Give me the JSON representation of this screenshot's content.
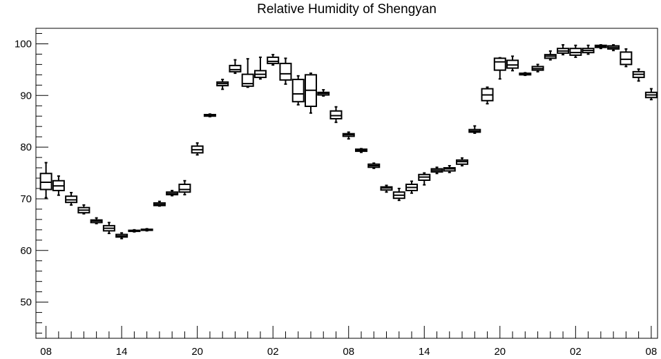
{
  "chart_data": {
    "type": "box",
    "title": "Relative Humidity of Shengyan",
    "xlabel": "",
    "ylabel": "",
    "ylim": [
      43,
      103
    ],
    "xlim": [
      -0.8,
      48.5
    ],
    "y_ticks": [
      50,
      60,
      70,
      80,
      90,
      100
    ],
    "x_tick_labels": [
      "08",
      "14",
      "20",
      "02",
      "08",
      "14",
      "20",
      "02",
      "08"
    ],
    "x_tick_positions": [
      0,
      6,
      12,
      18,
      24,
      30,
      36,
      42,
      48
    ],
    "grid": false,
    "box_count": 49,
    "boxes": [
      {
        "x": 0,
        "min": 70.2,
        "q1": 71.8,
        "median": 73.2,
        "q3": 74.9,
        "max": 77.0
      },
      {
        "x": 1,
        "min": 70.7,
        "q1": 71.6,
        "median": 72.5,
        "q3": 73.5,
        "max": 74.4
      },
      {
        "x": 2,
        "min": 68.8,
        "q1": 69.3,
        "median": 69.8,
        "q3": 70.5,
        "max": 71.2
      },
      {
        "x": 3,
        "min": 67.1,
        "q1": 67.3,
        "median": 67.8,
        "q3": 68.3,
        "max": 68.8
      },
      {
        "x": 4,
        "min": 65.2,
        "q1": 65.4,
        "median": 65.7,
        "q3": 65.9,
        "max": 66.3
      },
      {
        "x": 5,
        "min": 63.3,
        "q1": 63.8,
        "median": 64.3,
        "q3": 64.8,
        "max": 65.4
      },
      {
        "x": 6,
        "min": 62.3,
        "q1": 62.6,
        "median": 62.8,
        "q3": 63.1,
        "max": 63.4
      },
      {
        "x": 7,
        "min": 63.6,
        "q1": 63.7,
        "median": 63.8,
        "q3": 63.9,
        "max": 64.0
      },
      {
        "x": 8,
        "min": 63.8,
        "q1": 63.9,
        "median": 64.0,
        "q3": 64.1,
        "max": 64.2
      },
      {
        "x": 9,
        "min": 68.6,
        "q1": 68.7,
        "median": 68.9,
        "q3": 69.2,
        "max": 69.5
      },
      {
        "x": 10,
        "min": 70.6,
        "q1": 70.8,
        "median": 71.0,
        "q3": 71.3,
        "max": 71.6
      },
      {
        "x": 11,
        "min": 70.8,
        "q1": 71.3,
        "median": 71.8,
        "q3": 72.8,
        "max": 73.5
      },
      {
        "x": 12,
        "min": 78.5,
        "q1": 78.9,
        "median": 79.5,
        "q3": 80.2,
        "max": 80.8
      },
      {
        "x": 13,
        "min": 85.9,
        "q1": 86.0,
        "median": 86.1,
        "q3": 86.3,
        "max": 86.4
      },
      {
        "x": 14,
        "min": 91.2,
        "q1": 91.9,
        "median": 92.3,
        "q3": 92.6,
        "max": 93.1
      },
      {
        "x": 15,
        "min": 94.3,
        "q1": 94.6,
        "median": 95.0,
        "q3": 95.8,
        "max": 96.9
      },
      {
        "x": 16,
        "min": 91.6,
        "q1": 91.8,
        "median": 92.3,
        "q3": 94.1,
        "max": 97.1
      },
      {
        "x": 17,
        "min": 93.2,
        "q1": 93.5,
        "median": 94.1,
        "q3": 94.8,
        "max": 97.4
      },
      {
        "x": 18,
        "min": 95.9,
        "q1": 96.2,
        "median": 96.6,
        "q3": 97.4,
        "max": 97.9
      },
      {
        "x": 19,
        "min": 92.2,
        "q1": 93.0,
        "median": 94.2,
        "q3": 96.2,
        "max": 97.2
      },
      {
        "x": 20,
        "min": 88.2,
        "q1": 88.8,
        "median": 90.3,
        "q3": 93.1,
        "max": 93.8
      },
      {
        "x": 21,
        "min": 86.6,
        "q1": 87.9,
        "median": 91.0,
        "q3": 94.0,
        "max": 94.3
      },
      {
        "x": 22,
        "min": 89.9,
        "q1": 90.1,
        "median": 90.4,
        "q3": 90.6,
        "max": 91.1
      },
      {
        "x": 23,
        "min": 84.8,
        "q1": 85.5,
        "median": 86.1,
        "q3": 87.0,
        "max": 87.8
      },
      {
        "x": 24,
        "min": 81.6,
        "q1": 82.1,
        "median": 82.4,
        "q3": 82.6,
        "max": 82.9
      },
      {
        "x": 25,
        "min": 79.0,
        "q1": 79.2,
        "median": 79.4,
        "q3": 79.6,
        "max": 79.7
      },
      {
        "x": 26,
        "min": 75.9,
        "q1": 76.1,
        "median": 76.4,
        "q3": 76.7,
        "max": 76.9
      },
      {
        "x": 27,
        "min": 71.3,
        "q1": 71.7,
        "median": 72.1,
        "q3": 72.3,
        "max": 72.6
      },
      {
        "x": 28,
        "min": 69.7,
        "q1": 70.1,
        "median": 70.7,
        "q3": 71.3,
        "max": 72.0
      },
      {
        "x": 29,
        "min": 71.1,
        "q1": 71.6,
        "median": 72.2,
        "q3": 72.8,
        "max": 73.4
      },
      {
        "x": 30,
        "min": 72.7,
        "q1": 73.6,
        "median": 74.2,
        "q3": 74.7,
        "max": 75.0
      },
      {
        "x": 31,
        "min": 74.9,
        "q1": 75.2,
        "median": 75.5,
        "q3": 75.8,
        "max": 76.1
      },
      {
        "x": 32,
        "min": 75.1,
        "q1": 75.4,
        "median": 75.8,
        "q3": 76.0,
        "max": 76.4
      },
      {
        "x": 33,
        "min": 76.4,
        "q1": 76.7,
        "median": 77.2,
        "q3": 77.5,
        "max": 77.9
      },
      {
        "x": 34,
        "min": 82.7,
        "q1": 82.9,
        "median": 83.1,
        "q3": 83.4,
        "max": 84.1
      },
      {
        "x": 35,
        "min": 88.4,
        "q1": 89.0,
        "median": 90.1,
        "q3": 91.3,
        "max": 91.6
      },
      {
        "x": 36,
        "min": 93.2,
        "q1": 94.9,
        "median": 96.5,
        "q3": 97.2,
        "max": 97.3
      },
      {
        "x": 37,
        "min": 94.8,
        "q1": 95.3,
        "median": 95.9,
        "q3": 96.8,
        "max": 97.6
      },
      {
        "x": 38,
        "min": 93.9,
        "q1": 94.0,
        "median": 94.2,
        "q3": 94.3,
        "max": 94.4
      },
      {
        "x": 39,
        "min": 94.6,
        "q1": 94.9,
        "median": 95.2,
        "q3": 95.6,
        "max": 96.0
      },
      {
        "x": 40,
        "min": 96.9,
        "q1": 97.2,
        "median": 97.6,
        "q3": 97.9,
        "max": 98.6
      },
      {
        "x": 41,
        "min": 97.9,
        "q1": 98.2,
        "median": 98.6,
        "q3": 99.1,
        "max": 99.8
      },
      {
        "x": 42,
        "min": 97.4,
        "q1": 97.8,
        "median": 98.3,
        "q3": 99.1,
        "max": 99.7
      },
      {
        "x": 43,
        "min": 98.0,
        "q1": 98.3,
        "median": 98.7,
        "q3": 99.1,
        "max": 99.7
      },
      {
        "x": 44,
        "min": 99.1,
        "q1": 99.3,
        "median": 99.5,
        "q3": 99.7,
        "max": 99.8
      },
      {
        "x": 45,
        "min": 98.7,
        "q1": 99.0,
        "median": 99.3,
        "q3": 99.6,
        "max": 99.8
      },
      {
        "x": 46,
        "min": 95.6,
        "q1": 96.0,
        "median": 97.0,
        "q3": 98.4,
        "max": 99.0
      },
      {
        "x": 47,
        "min": 92.8,
        "q1": 93.5,
        "median": 94.1,
        "q3": 94.6,
        "max": 95.1
      },
      {
        "x": 48,
        "min": 89.2,
        "q1": 89.6,
        "median": 90.1,
        "q3": 90.6,
        "max": 91.3
      }
    ]
  }
}
